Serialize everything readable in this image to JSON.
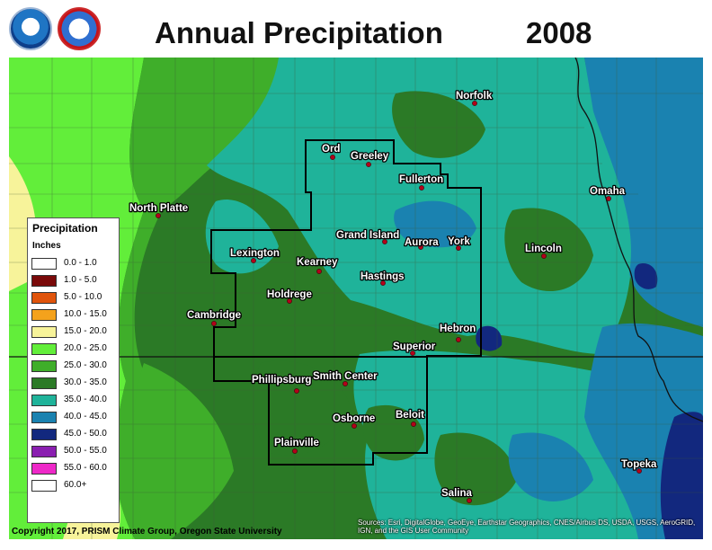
{
  "title": "Annual Precipitation",
  "year": "2008",
  "logos": [
    {
      "name": "noaa-logo",
      "text": "NOAA"
    },
    {
      "name": "nws-logo",
      "text": "NATIONAL WEATHER SERVICE"
    }
  ],
  "legend": {
    "title": "Precipitation",
    "units": "Inches",
    "items": [
      {
        "label": "0.0 - 1.0",
        "color": "#ffffff"
      },
      {
        "label": "1.0 - 5.0",
        "color": "#7a0a0a"
      },
      {
        "label": "5.0 - 10.0",
        "color": "#e0540c"
      },
      {
        "label": "10.0 - 15.0",
        "color": "#f4a21c"
      },
      {
        "label": "15.0 - 20.0",
        "color": "#f7f39a"
      },
      {
        "label": "20.0 - 25.0",
        "color": "#62ee3a"
      },
      {
        "label": "25.0 - 30.0",
        "color": "#3fae2a"
      },
      {
        "label": "30.0 - 35.0",
        "color": "#2b7a26"
      },
      {
        "label": "35.0 - 40.0",
        "color": "#1fb39a"
      },
      {
        "label": "40.0 - 45.0",
        "color": "#1a82b0"
      },
      {
        "label": "45.0 - 50.0",
        "color": "#12287e"
      },
      {
        "label": "50.0 - 55.0",
        "color": "#8a1fb0"
      },
      {
        "label": "55.0 - 60.0",
        "color": "#ee28c8"
      },
      {
        "label": "60.0+",
        "color": "#ffffff"
      }
    ]
  },
  "cities": [
    {
      "name": "Norfolk"
    },
    {
      "name": "Ord"
    },
    {
      "name": "Greeley"
    },
    {
      "name": "Fullerton"
    },
    {
      "name": "Omaha"
    },
    {
      "name": "North Platte"
    },
    {
      "name": "Grand Island"
    },
    {
      "name": "Aurora"
    },
    {
      "name": "York"
    },
    {
      "name": "Lincoln"
    },
    {
      "name": "Lexington"
    },
    {
      "name": "Kearney"
    },
    {
      "name": "Hastings"
    },
    {
      "name": "Holdrege"
    },
    {
      "name": "Cambridge"
    },
    {
      "name": "Hebron"
    },
    {
      "name": "Superior"
    },
    {
      "name": "Phillipsburg"
    },
    {
      "name": "Smith Center"
    },
    {
      "name": "Osborne"
    },
    {
      "name": "Beloit"
    },
    {
      "name": "Plainville"
    },
    {
      "name": "Topeka"
    },
    {
      "name": "Salina"
    }
  ],
  "copyright": "Copyright 2017, PRISM Climate Group, Oregon State University",
  "sources": "Sources: Esri, DigitalGlobe, GeoEye, Earthstar Geographics, CNES/Airbus DS, USDA, USGS, AeroGRID, IGN, and the GIS User Community"
}
